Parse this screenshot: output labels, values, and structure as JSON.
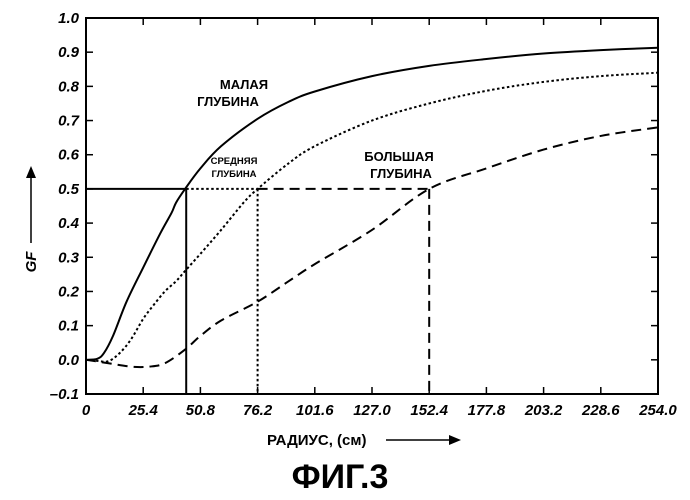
{
  "figure_caption": "ФИГ.3",
  "chart_data": {
    "type": "line",
    "title": "",
    "xlabel": "РАДИУС, (см)",
    "ylabel": "GF",
    "xlim": [
      0,
      254.0
    ],
    "ylim": [
      -0.1,
      1.0
    ],
    "x_ticks": [
      "0",
      "25.4",
      "50.8",
      "76.2",
      "101.6",
      "127.0",
      "152.4",
      "177.8",
      "203.2",
      "228.6",
      "254.0"
    ],
    "y_ticks": [
      "–0.1",
      "0.0",
      "0.1",
      "0.2",
      "0.3",
      "0.4",
      "0.5",
      "0.6",
      "0.7",
      "0.8",
      "0.9",
      "1.0"
    ],
    "grid": false,
    "legend": "none",
    "series": [
      {
        "name": "МАЛАЯ ГЛУБИНА",
        "style": "solid",
        "label_lines": [
          "МАЛАЯ",
          "ГЛУБИНА"
        ],
        "points": [
          [
            0,
            0.0
          ],
          [
            5,
            0.003
          ],
          [
            8,
            0.02
          ],
          [
            12,
            0.07
          ],
          [
            18,
            0.17
          ],
          [
            25.4,
            0.27
          ],
          [
            33,
            0.37
          ],
          [
            38,
            0.43
          ],
          [
            40,
            0.46
          ],
          [
            44,
            0.5
          ],
          [
            50.8,
            0.56
          ],
          [
            60,
            0.625
          ],
          [
            76.2,
            0.705
          ],
          [
            90,
            0.755
          ],
          [
            101.6,
            0.785
          ],
          [
            127,
            0.83
          ],
          [
            152.4,
            0.86
          ],
          [
            177.8,
            0.88
          ],
          [
            203.2,
            0.896
          ],
          [
            228.6,
            0.906
          ],
          [
            254,
            0.913
          ]
        ]
      },
      {
        "name": "СРЕДНЯЯ ГЛУБИНА",
        "style": "dotted",
        "label_lines": [
          "СРЕДНЯЯ",
          "ГЛУБИНА"
        ],
        "points": [
          [
            0,
            0.0
          ],
          [
            5,
            -0.003
          ],
          [
            10,
            -0.004
          ],
          [
            15,
            0.02
          ],
          [
            20,
            0.06
          ],
          [
            25.4,
            0.12
          ],
          [
            30,
            0.16
          ],
          [
            35,
            0.2
          ],
          [
            40,
            0.23
          ],
          [
            44,
            0.26
          ],
          [
            50.8,
            0.31
          ],
          [
            60,
            0.38
          ],
          [
            70,
            0.46
          ],
          [
            76.2,
            0.5
          ],
          [
            90,
            0.575
          ],
          [
            101.6,
            0.625
          ],
          [
            127,
            0.7
          ],
          [
            152.4,
            0.75
          ],
          [
            177.8,
            0.787
          ],
          [
            203.2,
            0.813
          ],
          [
            228.6,
            0.83
          ],
          [
            254,
            0.84
          ]
        ]
      },
      {
        "name": "БОЛЬШАЯ ГЛУБИНА",
        "style": "dashed",
        "label_lines": [
          "БОЛЬШАЯ",
          "ГЛУБИНА"
        ],
        "points": [
          [
            0,
            0.0
          ],
          [
            10,
            -0.01
          ],
          [
            20,
            -0.02
          ],
          [
            28,
            -0.02
          ],
          [
            35,
            -0.01
          ],
          [
            44,
            0.03
          ],
          [
            50.8,
            0.07
          ],
          [
            60,
            0.115
          ],
          [
            76.2,
            0.17
          ],
          [
            90,
            0.23
          ],
          [
            101.6,
            0.28
          ],
          [
            127,
            0.38
          ],
          [
            152.4,
            0.5
          ],
          [
            177.8,
            0.56
          ],
          [
            203.2,
            0.615
          ],
          [
            228.6,
            0.655
          ],
          [
            254,
            0.68
          ]
        ]
      }
    ],
    "reference_lines": {
      "y": 0.5,
      "x": [
        44.5,
        76.2,
        152.4
      ],
      "styles": [
        "solid",
        "dotted",
        "dashed"
      ]
    },
    "annotations": {
      "small_depth": [
        "МАЛАЯ",
        "ГЛУБИНА"
      ],
      "medium_depth": [
        "СРЕДНЯЯ",
        "ГЛУБИНА"
      ],
      "large_depth": [
        "БОЛЬШАЯ",
        "ГЛУБИНА"
      ]
    }
  }
}
